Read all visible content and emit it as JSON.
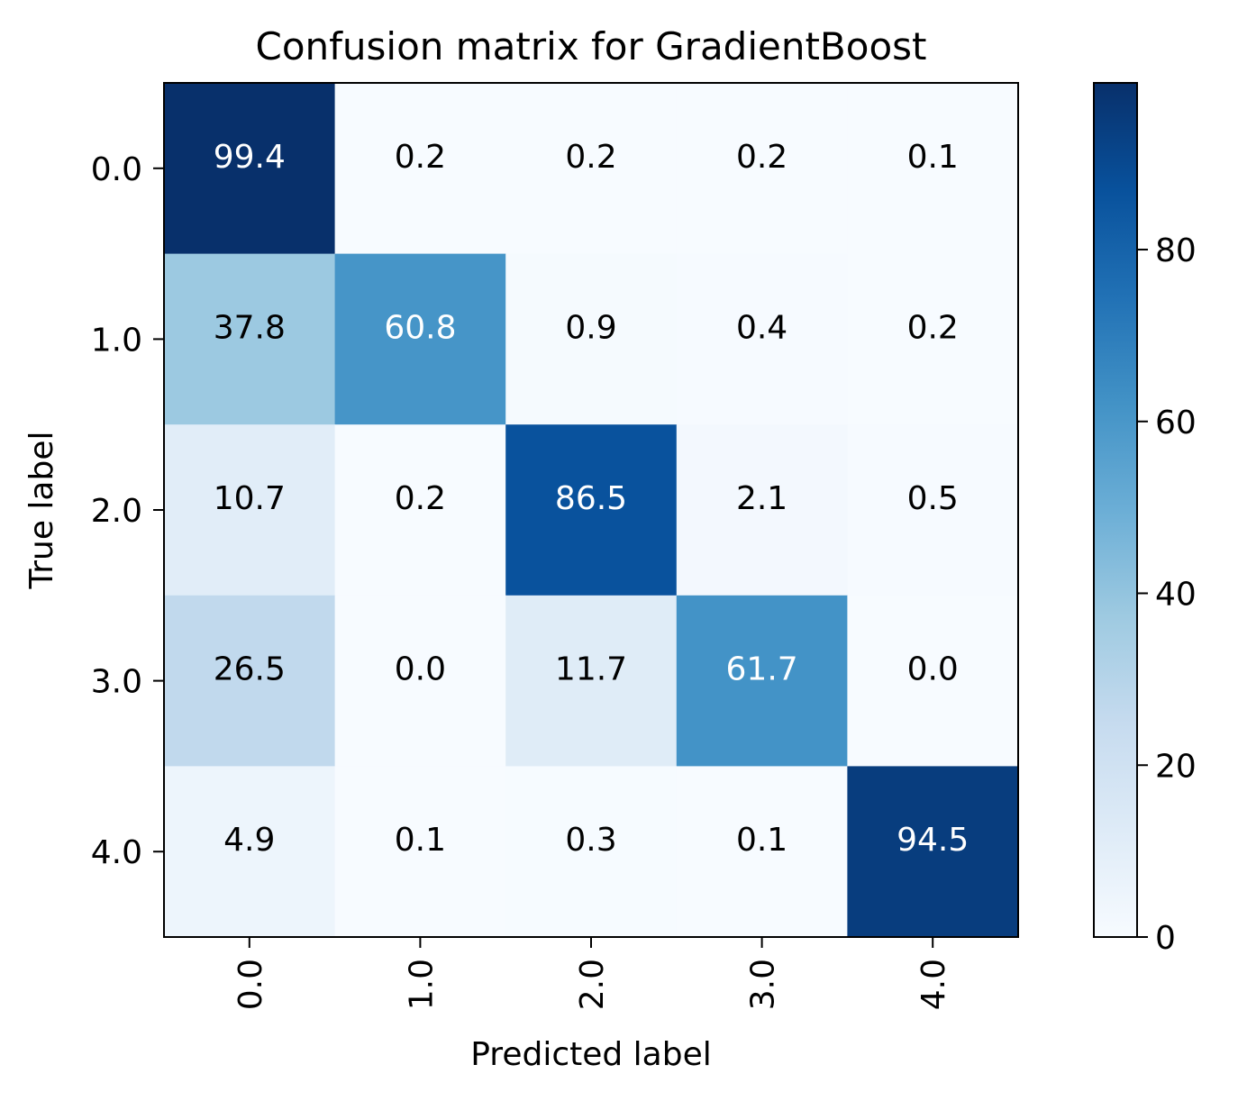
{
  "chart_data": {
    "type": "heatmap",
    "title": "Confusion matrix for GradientBoost",
    "xlabel": "Predicted label",
    "ylabel": "True label",
    "x_categories": [
      "0.0",
      "1.0",
      "2.0",
      "3.0",
      "4.0"
    ],
    "y_categories": [
      "0.0",
      "1.0",
      "2.0",
      "3.0",
      "4.0"
    ],
    "values": [
      [
        99.4,
        0.2,
        0.2,
        0.2,
        0.1
      ],
      [
        37.8,
        60.8,
        0.9,
        0.4,
        0.2
      ],
      [
        10.7,
        0.2,
        86.5,
        2.1,
        0.5
      ],
      [
        26.5,
        0.0,
        11.7,
        61.7,
        0.0
      ],
      [
        4.9,
        0.1,
        0.3,
        0.1,
        94.5
      ]
    ],
    "colormap": "Blues",
    "colorbar": {
      "range": [
        0,
        99.4
      ],
      "ticks": [
        0,
        20,
        40,
        60,
        80
      ],
      "tick_labels": [
        "0",
        "20",
        "40",
        "60",
        "80"
      ]
    },
    "x_tick_rotation": "vertical",
    "grid": false,
    "text_color_dark": "#000000",
    "text_color_light": "#ffffff"
  }
}
